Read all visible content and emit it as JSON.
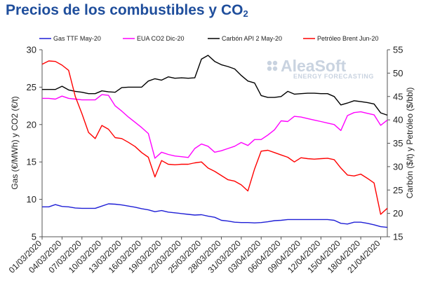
{
  "title": {
    "main": "Precios de los combustibles y CO",
    "sub": "2"
  },
  "watermark": {
    "brand": "AleaSoft",
    "tagline": "ENERGY FORECASTING"
  },
  "chart_data": {
    "type": "line",
    "x": [
      "01/03/2020",
      "02/03/2020",
      "03/03/2020",
      "04/03/2020",
      "05/03/2020",
      "06/03/2020",
      "07/03/2020",
      "08/03/2020",
      "09/03/2020",
      "10/03/2020",
      "11/03/2020",
      "12/03/2020",
      "13/03/2020",
      "14/03/2020",
      "15/03/2020",
      "16/03/2020",
      "17/03/2020",
      "18/03/2020",
      "19/03/2020",
      "20/03/2020",
      "21/03/2020",
      "22/03/2020",
      "23/03/2020",
      "24/03/2020",
      "25/03/2020",
      "26/03/2020",
      "27/03/2020",
      "28/03/2020",
      "29/03/2020",
      "30/03/2020",
      "31/03/2020",
      "01/04/2020",
      "02/04/2020",
      "03/04/2020",
      "04/04/2020",
      "05/04/2020",
      "06/04/2020",
      "07/04/2020",
      "08/04/2020",
      "09/04/2020",
      "10/04/2020",
      "11/04/2020",
      "12/04/2020",
      "13/04/2020",
      "14/04/2020",
      "15/04/2020",
      "16/04/2020",
      "17/04/2020",
      "18/04/2020",
      "19/04/2020",
      "20/04/2020",
      "21/04/2020",
      "22/04/2020"
    ],
    "x_tick_labels": [
      "01/03/2020",
      "04/03/2020",
      "07/03/2020",
      "10/03/2020",
      "13/03/2020",
      "16/03/2020",
      "19/03/2020",
      "22/03/2020",
      "25/03/2020",
      "28/03/2020",
      "31/03/2020",
      "03/04/2020",
      "06/04/2020",
      "09/04/2020",
      "12/04/2020",
      "15/04/2020",
      "18/04/2020",
      "21/04/2020"
    ],
    "y_left": {
      "label": "Gas (€/MWh) y CO2 (€/t)",
      "lim": [
        5,
        30
      ],
      "ticks": [
        5,
        10,
        15,
        20,
        25,
        30
      ]
    },
    "y_right": {
      "label": "Carbón ($/t) y Petróleo ($/bbl)",
      "lim": [
        15,
        55
      ],
      "ticks": [
        15,
        20,
        25,
        30,
        35,
        40,
        45,
        50,
        55
      ]
    },
    "grid": false,
    "legend_position": "top",
    "series": [
      {
        "name": "Gas TTF May-20",
        "axis": "left",
        "color": "#1f1fd6",
        "values": [
          9.0,
          9.0,
          9.3,
          9.05,
          9.0,
          8.85,
          8.8,
          8.8,
          8.8,
          9.1,
          9.4,
          9.35,
          9.25,
          9.1,
          8.95,
          8.75,
          8.6,
          8.35,
          8.5,
          8.3,
          8.2,
          8.1,
          8.0,
          7.9,
          7.95,
          7.75,
          7.6,
          7.2,
          7.1,
          6.95,
          6.9,
          6.9,
          6.85,
          6.9,
          7.0,
          7.15,
          7.2,
          7.3,
          7.3,
          7.3,
          7.3,
          7.3,
          7.3,
          7.3,
          7.2,
          6.8,
          6.7,
          6.95,
          6.95,
          6.8,
          6.6,
          6.35,
          6.25
        ]
      },
      {
        "name": "EUA CO2 Dic-20",
        "axis": "left",
        "color": "#ff00ff",
        "values": [
          23.5,
          23.5,
          23.4,
          23.8,
          23.5,
          23.4,
          23.3,
          23.3,
          23.3,
          24.0,
          23.9,
          22.5,
          21.8,
          21.0,
          20.3,
          19.6,
          18.8,
          15.5,
          16.3,
          16.0,
          15.8,
          15.7,
          15.6,
          16.8,
          17.4,
          17.1,
          16.3,
          16.5,
          16.8,
          17.1,
          17.6,
          17.2,
          18.0,
          18.0,
          18.6,
          19.3,
          20.5,
          20.4,
          21.1,
          21.0,
          20.8,
          20.6,
          20.4,
          20.2,
          20.0,
          19.2,
          21.2,
          21.6,
          21.7,
          21.5,
          21.3,
          19.9,
          20.6
        ]
      },
      {
        "name": "Carbón API 2 May-20",
        "axis": "right",
        "color": "#000000",
        "values": [
          46.5,
          46.5,
          46.5,
          47.2,
          46.4,
          46.1,
          45.9,
          45.6,
          45.6,
          46.2,
          46.0,
          45.9,
          46.9,
          47.0,
          47.0,
          47.0,
          48.3,
          48.8,
          48.5,
          49.2,
          48.9,
          49.0,
          48.9,
          49.0,
          53.0,
          53.8,
          52.5,
          51.8,
          51.4,
          50.9,
          49.5,
          48.3,
          47.9,
          45.2,
          44.8,
          44.8,
          45.0,
          46.1,
          45.5,
          45.6,
          45.7,
          45.7,
          45.6,
          45.6,
          45.0,
          43.2,
          43.6,
          44.1,
          43.9,
          43.7,
          43.4,
          41.5,
          41.0
        ]
      },
      {
        "name": "Petróleo Brent Jun-20",
        "axis": "right",
        "color": "#ff0000",
        "values": [
          51.9,
          52.6,
          52.5,
          51.7,
          50.6,
          45.0,
          41.3,
          37.3,
          36.0,
          38.8,
          38.0,
          36.2,
          36.0,
          35.2,
          34.3,
          33.0,
          32.0,
          27.8,
          31.3,
          30.5,
          30.4,
          30.5,
          30.5,
          30.8,
          31.0,
          29.7,
          29.0,
          28.1,
          27.2,
          26.9,
          26.1,
          24.8,
          29.5,
          33.3,
          33.5,
          33.0,
          32.5,
          32.0,
          31.0,
          31.9,
          31.7,
          31.6,
          31.7,
          31.8,
          31.5,
          29.7,
          28.2,
          28.0,
          28.4,
          27.5,
          26.5,
          19.8,
          21.1
        ]
      }
    ]
  }
}
